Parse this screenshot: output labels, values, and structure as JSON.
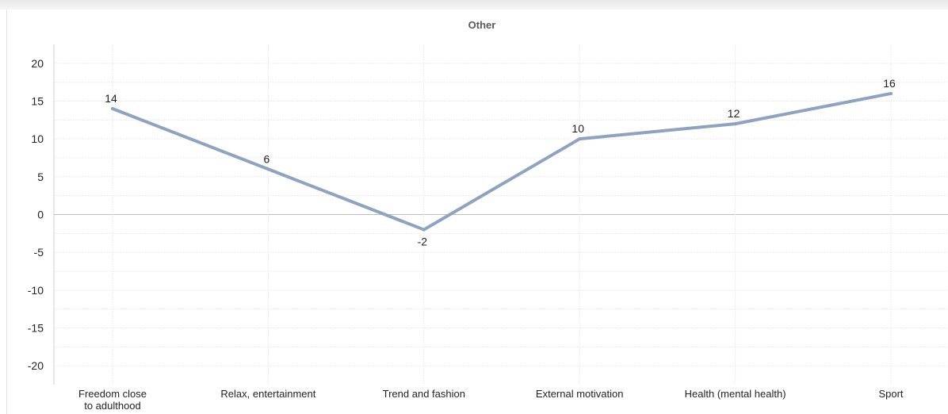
{
  "chart_data": {
    "type": "line",
    "title": "Other",
    "categories": [
      [
        "Freedom close",
        "to adulthood"
      ],
      [
        "Relax, entertainment"
      ],
      [
        "Trend and fashion"
      ],
      [
        "External motivation"
      ],
      [
        "Health (mental health)"
      ],
      [
        "Sport"
      ]
    ],
    "series": [
      {
        "values": [
          14,
          6,
          -2,
          10,
          12,
          16
        ]
      }
    ],
    "ylim": [
      -22.5,
      22.5
    ],
    "yticks": [
      20,
      15,
      10,
      5,
      0,
      -5,
      -10,
      -15,
      -20
    ],
    "data_labels": true,
    "grid": true,
    "line_color": "#8fa3bf"
  }
}
